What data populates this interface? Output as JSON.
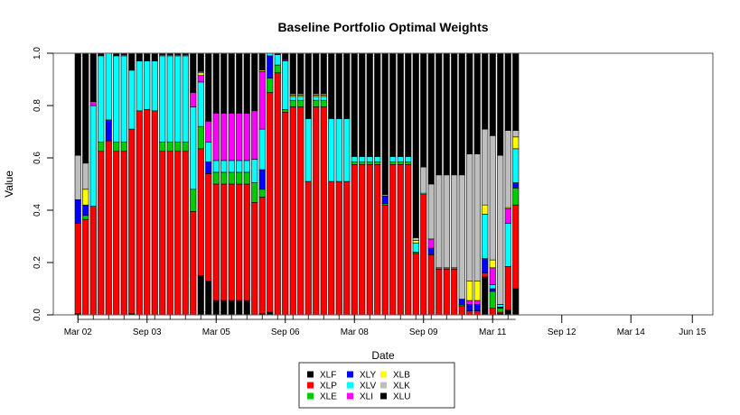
{
  "chart_data": {
    "type": "bar",
    "stacked": true,
    "title": "Baseline Portfolio Optimal Weights",
    "xlabel": "Date",
    "ylabel": "Value",
    "ylim": [
      0,
      1
    ],
    "yticks": [
      "0.0",
      "0.2",
      "0.4",
      "0.6",
      "0.8",
      "1.0"
    ],
    "xtick_labels": [
      "Mar 02",
      "Sep 03",
      "Mar 05",
      "Sep 06",
      "Mar 08",
      "Sep 09",
      "Mar 11",
      "Sep 12",
      "Mar 14",
      "Jun 15"
    ],
    "xtick_positions": [
      0,
      9,
      18,
      27,
      36,
      45,
      54,
      63,
      72,
      80
    ],
    "minor_tick_step": 2,
    "legend_position": "bottom",
    "series_colors": {
      "XLF": "#000000",
      "XLP": "#ff0000",
      "XLE": "#00cc00",
      "XLY": "#0000ff",
      "XLV": "#00ffff",
      "XLI": "#ff00ff",
      "XLB": "#ffff00",
      "XLK": "#bebebe",
      "XLU": "#000000"
    },
    "legend": [
      "XLF",
      "XLP",
      "XLE",
      "XLY",
      "XLV",
      "XLI",
      "XLB",
      "XLK",
      "XLU"
    ],
    "stack_order": [
      "XLU",
      "XLP",
      "XLE",
      "XLY",
      "XLV",
      "XLI",
      "XLB",
      "XLK",
      "XLF"
    ],
    "bars": [
      {
        "XLU": 0.005,
        "XLP": 0.345,
        "XLY": 0.09,
        "XLK": 0.17,
        "XLF": 0.39
      },
      {
        "XLP": 0.365,
        "XLE": 0.015,
        "XLY": 0.04,
        "XLB": 0.06,
        "XLK": 0.1,
        "XLF": 0.42
      },
      {
        "XLP": 0.415,
        "XLV": 0.385,
        "XLI": 0.015,
        "XLF": 0.185
      },
      {
        "XLP": 0.625,
        "XLE": 0.035,
        "XLV": 0.33,
        "XLF": 0.01
      },
      {
        "XLP": 0.665,
        "XLY": 0.08,
        "XLV": 0.255
      },
      {
        "XLP": 0.625,
        "XLE": 0.035,
        "XLV": 0.33,
        "XLF": 0.01
      },
      {
        "XLP": 0.625,
        "XLE": 0.035,
        "XLV": 0.33,
        "XLI": 0.005,
        "XLF": 0.005
      },
      {
        "XLU": 0.005,
        "XLP": 0.705,
        "XLV": 0.225,
        "XLF": 0.065
      },
      {
        "XLP": 0.78,
        "XLV": 0.19,
        "XLF": 0.03
      },
      {
        "XLP": 0.785,
        "XLV": 0.185,
        "XLF": 0.03
      },
      {
        "XLP": 0.78,
        "XLV": 0.19,
        "XLF": 0.03
      },
      {
        "XLP": 0.625,
        "XLE": 0.035,
        "XLV": 0.33,
        "XLI": 0.005,
        "XLF": 0.005
      },
      {
        "XLP": 0.625,
        "XLE": 0.035,
        "XLV": 0.33,
        "XLI": 0.005,
        "XLF": 0.005
      },
      {
        "XLP": 0.625,
        "XLE": 0.035,
        "XLV": 0.33,
        "XLI": 0.005,
        "XLF": 0.005
      },
      {
        "XLP": 0.625,
        "XLE": 0.035,
        "XLV": 0.33,
        "XLI": 0.005,
        "XLF": 0.005
      },
      {
        "XLP": 0.395,
        "XLE": 0.085,
        "XLV": 0.315,
        "XLI": 0.055,
        "XLF": 0.15
      },
      {
        "XLU": 0.15,
        "XLP": 0.485,
        "XLE": 0.085,
        "XLV": 0.17,
        "XLI": 0.025,
        "XLB": 0.01,
        "XLK": 0.005,
        "XLF": 0.07
      },
      {
        "XLU": 0.13,
        "XLP": 0.41,
        "XLY": 0.045,
        "XLV": 0.075,
        "XLI": 0.08,
        "XLF": 0.26
      },
      {
        "XLU": 0.055,
        "XLP": 0.445,
        "XLE": 0.045,
        "XLV": 0.045,
        "XLI": 0.18,
        "XLF": 0.23
      },
      {
        "XLU": 0.055,
        "XLP": 0.445,
        "XLE": 0.045,
        "XLV": 0.045,
        "XLI": 0.18,
        "XLF": 0.23
      },
      {
        "XLU": 0.055,
        "XLP": 0.445,
        "XLE": 0.045,
        "XLV": 0.045,
        "XLI": 0.18,
        "XLF": 0.23
      },
      {
        "XLU": 0.055,
        "XLP": 0.445,
        "XLE": 0.045,
        "XLV": 0.045,
        "XLI": 0.18,
        "XLF": 0.23
      },
      {
        "XLU": 0.055,
        "XLP": 0.445,
        "XLE": 0.045,
        "XLV": 0.045,
        "XLI": 0.18,
        "XLF": 0.23
      },
      {
        "XLP": 0.43,
        "XLE": 0.075,
        "XLV": 0.09,
        "XLI": 0.185,
        "XLF": 0.22
      },
      {
        "XLU": 0.005,
        "XLP": 0.445,
        "XLE": 0.03,
        "XLY": 0.075,
        "XLV": 0.155,
        "XLI": 0.22,
        "XLB": 0.005,
        "XLF": 0.065
      },
      {
        "XLU": 0.01,
        "XLP": 0.84,
        "XLE": 0.055,
        "XLY": 0.085,
        "XLV": 0.01
      },
      {
        "XLP": 0.925,
        "XLE": 0.03,
        "XLV": 0.04,
        "XLF": 0.005
      },
      {
        "XLP": 0.775,
        "XLE": 0.01,
        "XLV": 0.185,
        "XLI": 0.005,
        "XLF": 0.025
      },
      {
        "XLP": 0.795,
        "XLE": 0.025,
        "XLV": 0.015,
        "XLK": 0.005,
        "XLB": 0.005,
        "XLF": 0.155
      },
      {
        "XLP": 0.795,
        "XLE": 0.025,
        "XLV": 0.015,
        "XLK": 0.005,
        "XLB": 0.005,
        "XLF": 0.155
      },
      {
        "XLP": 0.51,
        "XLV": 0.24,
        "XLF": 0.25
      },
      {
        "XLP": 0.795,
        "XLE": 0.025,
        "XLV": 0.015,
        "XLK": 0.005,
        "XLB": 0.005,
        "XLF": 0.155
      },
      {
        "XLP": 0.795,
        "XLE": 0.025,
        "XLV": 0.015,
        "XLK": 0.005,
        "XLB": 0.005,
        "XLF": 0.155
      },
      {
        "XLP": 0.51,
        "XLV": 0.24,
        "XLF": 0.25
      },
      {
        "XLP": 0.51,
        "XLV": 0.24,
        "XLF": 0.25
      },
      {
        "XLP": 0.51,
        "XLV": 0.24,
        "XLF": 0.25
      },
      {
        "XLP": 0.575,
        "XLE": 0.01,
        "XLV": 0.02,
        "XLF": 0.395
      },
      {
        "XLP": 0.575,
        "XLE": 0.01,
        "XLV": 0.02,
        "XLF": 0.395
      },
      {
        "XLP": 0.575,
        "XLE": 0.01,
        "XLV": 0.02,
        "XLF": 0.395
      },
      {
        "XLP": 0.575,
        "XLE": 0.01,
        "XLV": 0.02,
        "XLF": 0.395
      },
      {
        "XLP": 0.42,
        "XLE": 0.005,
        "XLY": 0.03,
        "XLK": 0.005,
        "XLF": 0.54
      },
      {
        "XLP": 0.575,
        "XLE": 0.01,
        "XLV": 0.02,
        "XLF": 0.395
      },
      {
        "XLP": 0.575,
        "XLE": 0.01,
        "XLV": 0.02,
        "XLF": 0.395
      },
      {
        "XLP": 0.575,
        "XLE": 0.01,
        "XLV": 0.02,
        "XLF": 0.395
      },
      {
        "XLP": 0.235,
        "XLE": 0.005,
        "XLV": 0.035,
        "XLB": 0.01,
        "XLK": 0.01,
        "XLF": 0.705
      },
      {
        "XLP": 0.46,
        "XLV": 0.005,
        "XLK": 0.1,
        "XLF": 0.435
      },
      {
        "XLP": 0.23,
        "XLY": 0.025,
        "XLI": 0.035,
        "XLK": 0.21,
        "XLF": 0.5
      },
      {
        "XLP": 0.175,
        "XLE": 0.005,
        "XLK": 0.355,
        "XLF": 0.465
      },
      {
        "XLP": 0.175,
        "XLE": 0.005,
        "XLK": 0.355,
        "XLF": 0.465
      },
      {
        "XLP": 0.175,
        "XLE": 0.005,
        "XLK": 0.355,
        "XLF": 0.465
      },
      {
        "XLP": 0.035,
        "XLE": 0.005,
        "XLY": 0.02,
        "XLK": 0.475,
        "XLF": 0.465
      },
      {
        "XLP": 0.015,
        "XLY": 0.025,
        "XLI": 0.015,
        "XLB": 0.075,
        "XLK": 0.485,
        "XLF": 0.385
      },
      {
        "XLP": 0.015,
        "XLY": 0.025,
        "XLI": 0.015,
        "XLB": 0.075,
        "XLK": 0.485,
        "XLF": 0.385
      },
      {
        "XLU": 0.145,
        "XLP": 0.015,
        "XLY": 0.055,
        "XLV": 0.17,
        "XLB": 0.035,
        "XLK": 0.29,
        "XLF": 0.29
      },
      {
        "XLP": 0.025,
        "XLY": 0.01,
        "XLE": 0.065,
        "XLV": 0.015,
        "XLI": 0.065,
        "XLB": 0.03,
        "XLK": 0.475,
        "XLF": 0.315
      },
      {
        "XLU": 0.005,
        "XLP": 0.005,
        "XLE": 0.015,
        "XLY": 0.005,
        "XLV": 0.01,
        "XLK": 0.57,
        "XLF": 0.39
      },
      {
        "XLU": 0.02,
        "XLP": 0.165,
        "XLV": 0.165,
        "XLI": 0.055,
        "XLB": 0.005,
        "XLK": 0.295,
        "XLF": 0.295
      },
      {
        "XLU": 0.1,
        "XLP": 0.32,
        "XLE": 0.065,
        "XLY": 0.02,
        "XLV": 0.13,
        "XLB": 0.045,
        "XLK": 0.025,
        "XLF": 0.295
      }
    ]
  }
}
